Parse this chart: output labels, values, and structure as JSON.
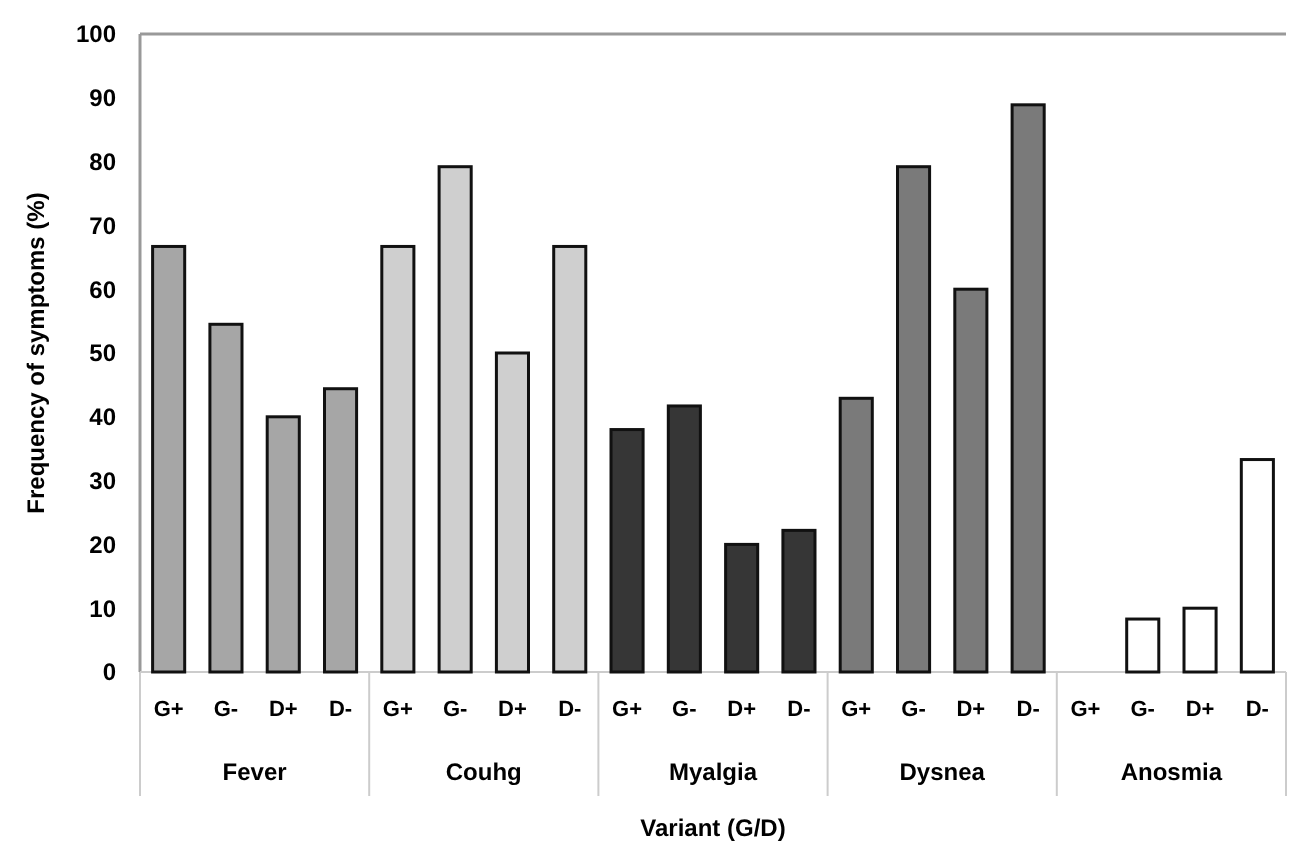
{
  "chart_data": {
    "type": "bar",
    "ylabel": "Frequency of symptoms (%)",
    "xlabel": "Variant (G/D)",
    "categories": [
      "G+",
      "G-",
      "D+",
      "D-",
      "G+",
      "G-",
      "D+",
      "D-",
      "G+",
      "G-",
      "D+",
      "D-",
      "G+",
      "G-",
      "D+",
      "D-",
      "G+",
      "G-",
      "D+",
      "D-"
    ],
    "values": [
      66.7,
      54.5,
      40,
      44.4,
      66.7,
      79.2,
      50,
      66.7,
      38,
      41.7,
      20,
      22.2,
      42.9,
      79.2,
      60,
      88.9,
      0,
      8.3,
      10,
      33.3
    ],
    "colors": [
      "#a6a6a6",
      "#a6a6a6",
      "#a6a6a6",
      "#a6a6a6",
      "#cfcfcf",
      "#cfcfcf",
      "#cfcfcf",
      "#cfcfcf",
      "#363636",
      "#363636",
      "#363636",
      "#363636",
      "#7a7a7a",
      "#7a7a7a",
      "#7a7a7a",
      "#7a7a7a",
      "#ffffff",
      "#ffffff",
      "#ffffff",
      "#ffffff"
    ],
    "annotations": [
      "Fever",
      "Couhg",
      "Myalgia",
      "Dysnea",
      "Anosmia"
    ],
    "ylim": [
      0,
      100
    ],
    "yticks": [
      0,
      10,
      20,
      30,
      40,
      50,
      60,
      70,
      80,
      90,
      100
    ]
  }
}
